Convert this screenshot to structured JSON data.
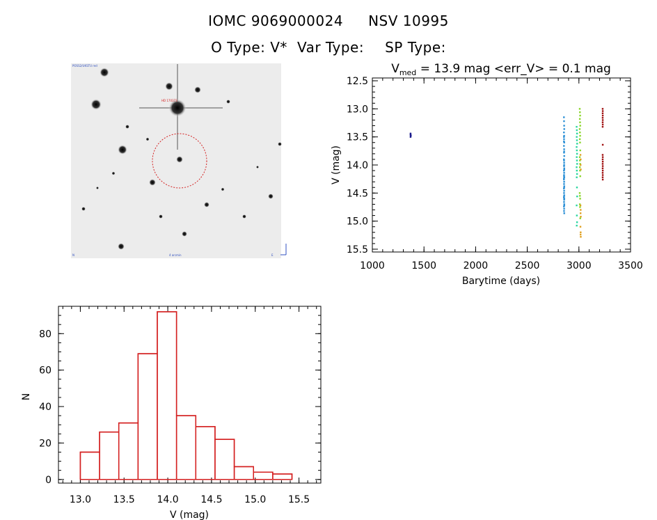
{
  "header": {
    "object_id": "IOMC 9069000024",
    "alt_name": "NSV 10995",
    "otype_label": "O Type: V*",
    "vartype_label": "Var Type:",
    "sptype_label": "SP Type:"
  },
  "image_panel": {
    "label_top_left": "POSS2/UKSTU red",
    "label_marker": "HD 170373",
    "label_bottom_left": "N",
    "label_bottom_center": "4 arcmin",
    "label_bottom_right": "E"
  },
  "chart_data": [
    {
      "type": "scatter",
      "title_prefix": "V",
      "title_sub": "med",
      "title_rest": " = 13.9 mag <err_V> = 0.1 mag",
      "xlabel": "Barytime (days)",
      "ylabel": "V (mag)",
      "xlim": [
        1000,
        3500
      ],
      "ylim": [
        15.55,
        12.45
      ],
      "y_inverted": true,
      "xticks": [
        1000,
        1500,
        2000,
        2500,
        3000,
        3500
      ],
      "yticks": [
        12.5,
        13.0,
        13.5,
        14.0,
        14.5,
        15.0,
        15.5
      ],
      "series": [
        {
          "color": "#1a1a8c",
          "x": [
            1370,
            1370,
            1372,
            1370,
            1371
          ],
          "y": [
            13.44,
            13.46,
            13.48,
            13.5,
            13.47
          ]
        },
        {
          "color": "#2a8fd6",
          "x": [
            2855,
            2856,
            2857,
            2858,
            2855,
            2857,
            2856,
            2858,
            2855,
            2857,
            2856,
            2858,
            2855,
            2857,
            2856,
            2858,
            2855,
            2857,
            2856,
            2858,
            2855,
            2857,
            2856,
            2858,
            2855,
            2857,
            2856,
            2858,
            2855,
            2857,
            2856,
            2858,
            2855,
            2857,
            2856,
            2858,
            2855,
            2857,
            2856,
            2858,
            2855,
            2857,
            2856,
            2858,
            2855,
            2857,
            2856,
            2858
          ],
          "y": [
            13.15,
            13.22,
            13.3,
            13.36,
            13.42,
            13.48,
            13.54,
            13.6,
            13.66,
            13.72,
            13.78,
            13.84,
            13.9,
            13.96,
            14.02,
            14.06,
            14.1,
            14.14,
            14.18,
            14.22,
            14.26,
            14.3,
            14.34,
            14.38,
            14.42,
            14.46,
            14.5,
            14.54,
            14.58,
            14.62,
            14.66,
            14.7,
            14.74,
            14.78,
            14.82,
            14.86,
            13.58,
            13.76,
            13.92,
            14.08,
            14.24,
            14.4,
            14.56,
            14.72,
            13.5,
            14.0,
            14.2,
            14.6
          ]
        },
        {
          "color": "#2ad6a0",
          "x": [
            2978,
            2980,
            2982,
            2979,
            2981,
            2983,
            2978,
            2980,
            2982,
            2979,
            2981,
            2983,
            2978,
            2980,
            2982,
            2979,
            2981,
            2983,
            2978,
            2980,
            2982,
            2979
          ],
          "y": [
            13.32,
            13.38,
            13.44,
            13.5,
            13.56,
            13.62,
            13.68,
            13.74,
            13.8,
            13.86,
            13.92,
            13.98,
            14.04,
            14.1,
            14.16,
            14.22,
            14.4,
            14.56,
            14.72,
            14.9,
            15.02,
            15.08
          ]
        },
        {
          "color": "#8ad62a",
          "x": [
            3008,
            3010,
            3012,
            3009,
            3011,
            3013,
            3008,
            3010,
            3012,
            3009,
            3011,
            3013,
            3008,
            3010,
            3012,
            3009,
            3011,
            3013,
            3008,
            3010,
            3012,
            3009,
            3011,
            3013
          ],
          "y": [
            13.0,
            13.06,
            13.12,
            13.18,
            13.24,
            13.3,
            13.36,
            13.42,
            13.48,
            13.54,
            13.6,
            13.74,
            13.86,
            13.92,
            13.98,
            14.04,
            14.1,
            14.2,
            14.5,
            14.55,
            14.6,
            14.7,
            14.75,
            14.95
          ]
        },
        {
          "color": "#e0a020",
          "x": [
            3015,
            3017,
            3016,
            3018,
            3015,
            3017,
            3016,
            3018,
            3015,
            3017,
            3016,
            3018
          ],
          "y": [
            13.82,
            13.9,
            14.0,
            14.08,
            14.72,
            14.8,
            14.86,
            14.92,
            15.1,
            15.2,
            15.24,
            15.28
          ]
        },
        {
          "color": "#a01010",
          "x": [
            3230,
            3231,
            3230,
            3231,
            3230,
            3231,
            3230,
            3231,
            3230,
            3231,
            3230,
            3231,
            3230,
            3231,
            3230,
            3231,
            3230,
            3231,
            3230,
            3231,
            3230,
            3231
          ],
          "y": [
            13.0,
            13.04,
            13.08,
            13.12,
            13.16,
            13.2,
            13.24,
            13.28,
            13.32,
            13.64,
            13.82,
            13.86,
            13.9,
            13.94,
            13.98,
            14.02,
            14.06,
            14.1,
            14.14,
            14.18,
            14.22,
            14.26
          ]
        }
      ]
    },
    {
      "type": "bar",
      "subtype": "histogram",
      "xlabel": "V (mag)",
      "ylabel": "N",
      "xlim": [
        12.75,
        15.75
      ],
      "ylim": [
        -2,
        95
      ],
      "xticks": [
        13.0,
        13.5,
        14.0,
        14.5,
        15.0,
        15.5
      ],
      "yticks": [
        0,
        20,
        40,
        60,
        80
      ],
      "bin_edges": [
        13.0,
        13.22,
        13.44,
        13.66,
        13.88,
        14.1,
        14.32,
        14.54,
        14.76,
        14.98,
        15.2,
        15.42
      ],
      "values": [
        15,
        26,
        31,
        69,
        92,
        35,
        29,
        22,
        7,
        4,
        3
      ],
      "bar_color": "#d42020"
    }
  ]
}
